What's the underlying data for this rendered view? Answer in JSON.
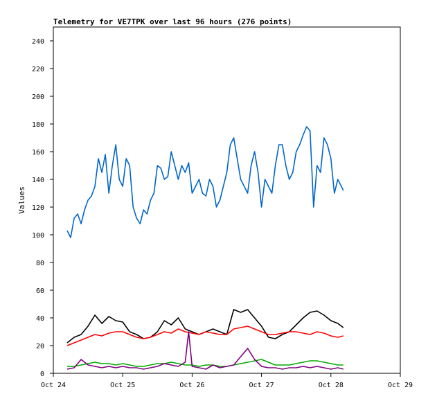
{
  "chart_data": {
    "type": "line",
    "title": "Telemetry for VE7TPK over last 96 hours (276 points)",
    "xlabel": "",
    "ylabel": "Values",
    "ylim": [
      0,
      250
    ],
    "xlim": [
      0,
      5
    ],
    "yticks": [
      0,
      20,
      40,
      60,
      80,
      100,
      120,
      140,
      160,
      180,
      200,
      220,
      240
    ],
    "xticks": [
      {
        "x": 0,
        "label": "Oct 24"
      },
      {
        "x": 1,
        "label": "Oct 25"
      },
      {
        "x": 2,
        "label": "Oct 26"
      },
      {
        "x": 3,
        "label": "Oct 27"
      },
      {
        "x": 4,
        "label": "Oct 28"
      },
      {
        "x": 5,
        "label": "Oct 29"
      }
    ],
    "grid": false,
    "legend": "none",
    "series": [
      {
        "color": "#0066cc",
        "x": [
          0.2,
          0.25,
          0.3,
          0.35,
          0.4,
          0.45,
          0.5,
          0.55,
          0.6,
          0.65,
          0.7,
          0.75,
          0.8,
          0.85,
          0.9,
          0.95,
          1.0,
          1.05,
          1.1,
          1.15,
          1.2,
          1.25,
          1.3,
          1.35,
          1.4,
          1.45,
          1.5,
          1.55,
          1.6,
          1.65,
          1.7,
          1.75,
          1.8,
          1.85,
          1.9,
          1.95,
          2.0,
          2.05,
          2.1,
          2.15,
          2.2,
          2.25,
          2.3,
          2.35,
          2.4,
          2.45,
          2.5,
          2.55,
          2.6,
          2.65,
          2.7,
          2.75,
          2.8,
          2.85,
          2.9,
          2.95,
          3.0,
          3.05,
          3.1,
          3.15,
          3.2,
          3.25,
          3.3,
          3.35,
          3.4,
          3.45,
          3.5,
          3.55,
          3.6,
          3.65,
          3.7,
          3.75,
          3.8,
          3.85,
          3.9,
          3.95,
          4.0,
          4.05,
          4.1,
          4.15,
          4.18
        ],
        "values": [
          103,
          98,
          112,
          115,
          108,
          118,
          125,
          128,
          135,
          155,
          145,
          158,
          130,
          150,
          165,
          140,
          135,
          155,
          150,
          120,
          112,
          108,
          118,
          115,
          125,
          130,
          150,
          148,
          140,
          142,
          160,
          150,
          140,
          150,
          145,
          152,
          130,
          135,
          140,
          130,
          128,
          140,
          135,
          120,
          125,
          135,
          145,
          165,
          170,
          155,
          140,
          135,
          130,
          150,
          160,
          145,
          120,
          140,
          135,
          130,
          150,
          165,
          165,
          150,
          140,
          145,
          160,
          165,
          172,
          178,
          175,
          120,
          150,
          145,
          170,
          165,
          155,
          130,
          140,
          135,
          132
        ]
      },
      {
        "color": "#000000",
        "x": [
          0.2,
          0.3,
          0.4,
          0.5,
          0.6,
          0.7,
          0.8,
          0.9,
          1.0,
          1.1,
          1.2,
          1.3,
          1.4,
          1.5,
          1.6,
          1.7,
          1.8,
          1.9,
          2.0,
          2.1,
          2.2,
          2.3,
          2.4,
          2.5,
          2.6,
          2.7,
          2.8,
          2.9,
          3.0,
          3.1,
          3.2,
          3.3,
          3.4,
          3.5,
          3.6,
          3.7,
          3.8,
          3.9,
          4.0,
          4.1,
          4.18
        ],
        "values": [
          22,
          26,
          28,
          34,
          42,
          36,
          41,
          38,
          37,
          30,
          28,
          25,
          26,
          30,
          38,
          35,
          40,
          32,
          30,
          28,
          30,
          32,
          30,
          28,
          46,
          44,
          46,
          40,
          34,
          26,
          25,
          28,
          30,
          35,
          40,
          44,
          45,
          42,
          38,
          36,
          33
        ]
      },
      {
        "color": "#ff0000",
        "x": [
          0.2,
          0.3,
          0.4,
          0.5,
          0.6,
          0.7,
          0.8,
          0.9,
          1.0,
          1.1,
          1.2,
          1.3,
          1.4,
          1.5,
          1.6,
          1.7,
          1.8,
          1.9,
          2.0,
          2.1,
          2.2,
          2.3,
          2.4,
          2.5,
          2.6,
          2.7,
          2.8,
          2.9,
          3.0,
          3.1,
          3.2,
          3.3,
          3.4,
          3.5,
          3.6,
          3.7,
          3.8,
          3.9,
          4.0,
          4.1,
          4.18
        ],
        "values": [
          20,
          22,
          24,
          26,
          28,
          27,
          29,
          30,
          30,
          28,
          26,
          25,
          26,
          28,
          30,
          29,
          32,
          30,
          29,
          28,
          30,
          29,
          28,
          28,
          32,
          33,
          34,
          32,
          30,
          28,
          28,
          29,
          30,
          30,
          29,
          28,
          30,
          29,
          27,
          26,
          27
        ]
      },
      {
        "color": "#00aa00",
        "x": [
          0.2,
          0.3,
          0.4,
          0.5,
          0.6,
          0.7,
          0.8,
          0.9,
          1.0,
          1.1,
          1.2,
          1.3,
          1.4,
          1.5,
          1.6,
          1.7,
          1.8,
          1.9,
          2.0,
          2.1,
          2.2,
          2.3,
          2.4,
          2.5,
          2.6,
          2.7,
          2.8,
          2.9,
          3.0,
          3.1,
          3.2,
          3.3,
          3.4,
          3.5,
          3.6,
          3.7,
          3.8,
          3.9,
          4.0,
          4.1,
          4.18
        ],
        "values": [
          5,
          5,
          6,
          7,
          8,
          7,
          7,
          6,
          7,
          6,
          5,
          5,
          6,
          7,
          7,
          8,
          7,
          6,
          6,
          5,
          6,
          6,
          5,
          5,
          6,
          7,
          8,
          9,
          10,
          8,
          6,
          6,
          6,
          7,
          8,
          9,
          9,
          8,
          7,
          6,
          6
        ]
      },
      {
        "color": "#800080",
        "x": [
          0.2,
          0.3,
          0.4,
          0.5,
          0.6,
          0.7,
          0.8,
          0.9,
          1.0,
          1.1,
          1.2,
          1.3,
          1.4,
          1.5,
          1.6,
          1.7,
          1.8,
          1.9,
          1.95,
          2.0,
          2.1,
          2.2,
          2.3,
          2.4,
          2.5,
          2.6,
          2.7,
          2.8,
          2.9,
          3.0,
          3.1,
          3.2,
          3.3,
          3.4,
          3.5,
          3.6,
          3.7,
          3.8,
          3.9,
          4.0,
          4.1,
          4.18
        ],
        "values": [
          3,
          4,
          10,
          6,
          5,
          4,
          5,
          4,
          5,
          4,
          4,
          3,
          4,
          5,
          7,
          6,
          5,
          8,
          30,
          5,
          4,
          3,
          6,
          4,
          5,
          6,
          12,
          18,
          10,
          5,
          4,
          4,
          3,
          4,
          4,
          5,
          4,
          5,
          4,
          3,
          4,
          3
        ]
      }
    ]
  }
}
